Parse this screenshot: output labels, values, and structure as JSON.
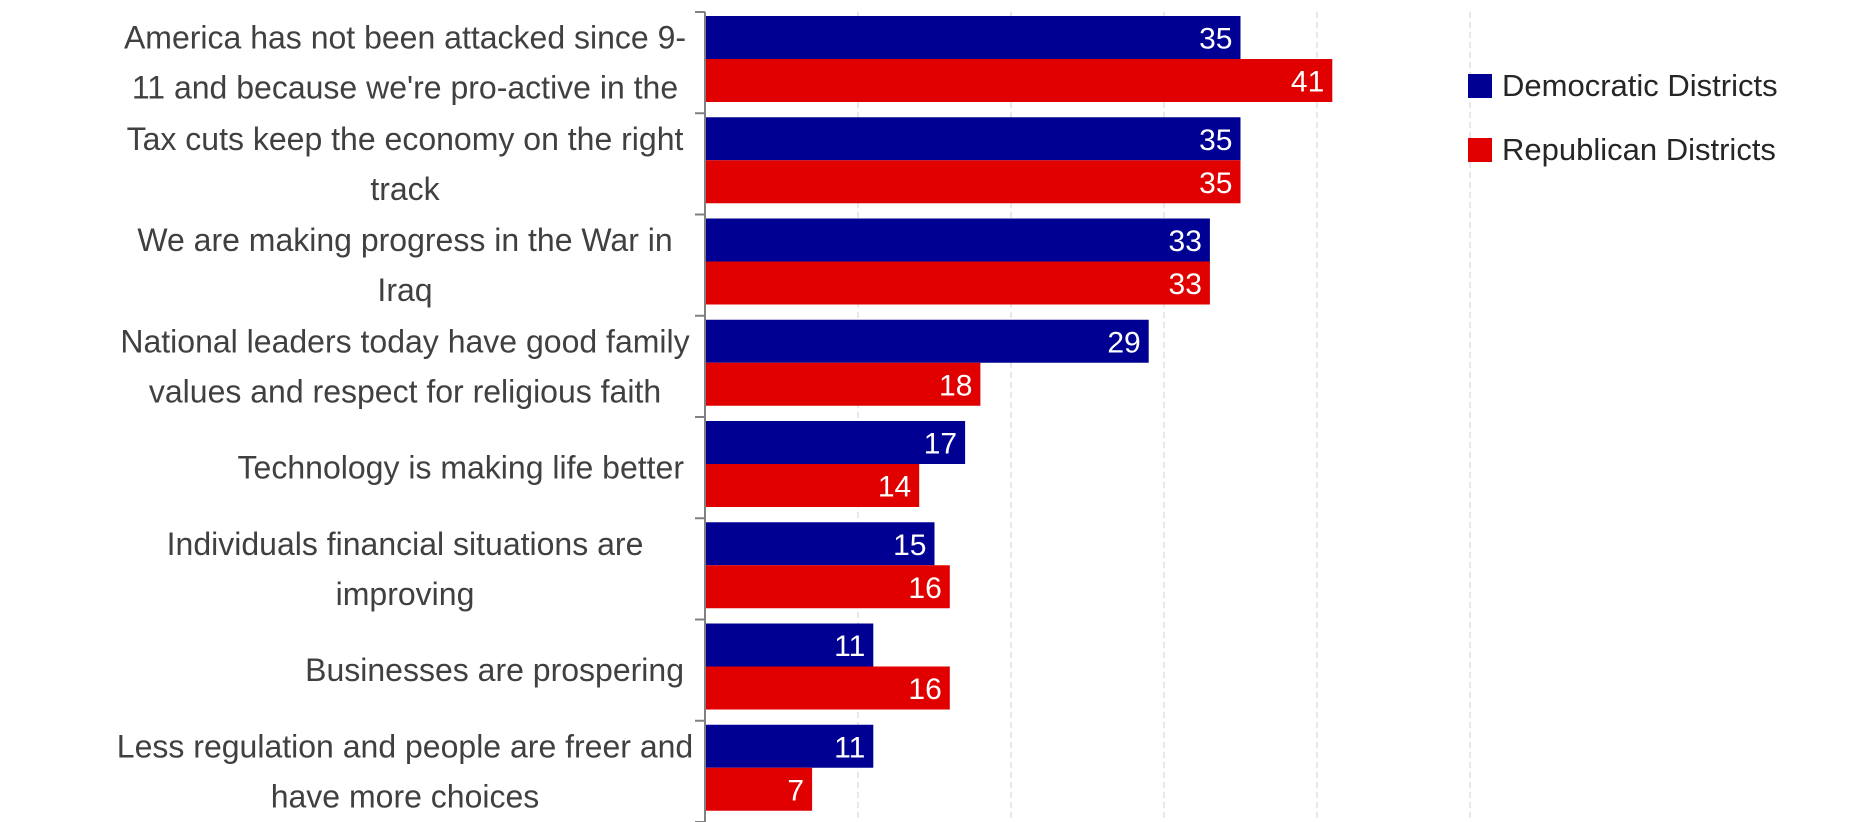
{
  "chart_data": {
    "type": "bar",
    "orientation": "horizontal",
    "categories": [
      [
        "America has not been attacked since 9-",
        "11 and because we're pro-active in the"
      ],
      [
        "Tax cuts keep the economy on the right",
        "track"
      ],
      [
        "We are making progress in the War in",
        "Iraq"
      ],
      [
        "National leaders today have good family",
        "values and respect for religious faith"
      ],
      [
        "Technology is making life better"
      ],
      [
        "Individuals financial situations are",
        "improving"
      ],
      [
        "Businesses are prospering"
      ],
      [
        "Less regulation and people are freer and",
        "have more choices"
      ]
    ],
    "series": [
      {
        "name": "Democratic Districts",
        "color": "#000093",
        "values": [
          35,
          35,
          33,
          29,
          17,
          15,
          11,
          11
        ]
      },
      {
        "name": "Republican Districts",
        "color": "#e00000",
        "values": [
          41,
          35,
          33,
          18,
          14,
          16,
          16,
          7
        ]
      }
    ],
    "xlim": [
      0,
      50
    ],
    "grid": true,
    "legend": "right",
    "data_labels": true
  }
}
